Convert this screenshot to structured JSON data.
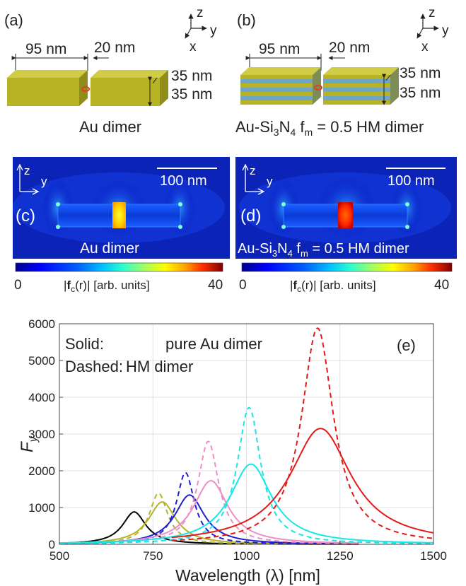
{
  "panels": {
    "a": {
      "label": "(a)",
      "length": "95 nm",
      "gap": "20 nm",
      "height_top": "35 nm",
      "height_bottom": "35 nm",
      "caption": "Au dimer",
      "axes": {
        "z": "z",
        "y": "y",
        "x": "x"
      },
      "block_color": "#b7b324"
    },
    "b": {
      "label": "(b)",
      "length": "95 nm",
      "gap": "20 nm",
      "height_top": "35 nm",
      "height_bottom": "35 nm",
      "caption_prefix": "Au-Si",
      "caption_sub1": "3",
      "caption_mid": "N",
      "caption_sub2": "4",
      "caption_f": " f",
      "caption_fsub": "m",
      "caption_suffix": " = 0.5 HM dimer",
      "axes": {
        "z": "z",
        "y": "y",
        "x": "x"
      },
      "layer_colors": [
        "#b7b324",
        "#6fa6c8"
      ]
    },
    "c": {
      "label": "(c)",
      "scalebar": "100 nm",
      "caption": "Au dimer",
      "axes": {
        "z": "z",
        "y": "y"
      }
    },
    "d": {
      "label": "(d)",
      "scalebar": "100 nm",
      "caption_prefix": "Au-Si",
      "caption_sub1": "3",
      "caption_mid": "N",
      "caption_sub2": "4",
      "caption_f": " f",
      "caption_fsub": "m",
      "caption_suffix": " = 0.5 HM dimer",
      "axes": {
        "z": "z",
        "y": "y"
      }
    },
    "colorbar": {
      "min": "0",
      "max": "40",
      "label_abs": "|",
      "label_f": "f",
      "label_fsub": "c",
      "label_r": "(r)|",
      "label_units": " [arb. units]",
      "colors": [
        "#00008f",
        "#0000ff",
        "#0060ff",
        "#00c0ff",
        "#30ffcf",
        "#a0ff60",
        "#ffff00",
        "#ffa000",
        "#ff3000",
        "#c00000",
        "#800000"
      ]
    }
  },
  "chart_data": {
    "type": "line",
    "panel_label": "(e)",
    "xlabel": "Wavelength (λ) [nm]",
    "ylabel": "F",
    "ylabel_sub": "y",
    "xlim": [
      500,
      1500
    ],
    "ylim": [
      0,
      6000
    ],
    "xticks": [
      500,
      750,
      1000,
      1250,
      1500
    ],
    "yticks": [
      0,
      1000,
      2000,
      3000,
      4000,
      5000,
      6000
    ],
    "grid": true,
    "legend_text": [
      {
        "key": "Solid:",
        "value": "pure Au dimer"
      },
      {
        "key": "Dashed:",
        "value": "HM dimer"
      }
    ],
    "series": [
      {
        "color": "#000000",
        "style": "solid",
        "peak_x": 700,
        "peak_y": 880,
        "width": 38,
        "xmin": 500,
        "xmax": 1300
      },
      {
        "color": "#b5b329",
        "style": "solid",
        "peak_x": 775,
        "peak_y": 1150,
        "width": 45,
        "xmin": 500,
        "xmax": 1300
      },
      {
        "color": "#b5b329",
        "style": "dashed",
        "peak_x": 765,
        "peak_y": 1390,
        "width": 30,
        "xmin": 500,
        "xmax": 1300
      },
      {
        "color": "#1f1fd1",
        "style": "solid",
        "peak_x": 848,
        "peak_y": 1340,
        "width": 48,
        "xmin": 500,
        "xmax": 1300
      },
      {
        "color": "#1f1fd1",
        "style": "dashed",
        "peak_x": 837,
        "peak_y": 1950,
        "width": 29,
        "xmin": 500,
        "xmax": 1300
      },
      {
        "color": "#ec8fc4",
        "style": "solid",
        "peak_x": 905,
        "peak_y": 1730,
        "width": 56,
        "xmin": 500,
        "xmax": 1300
      },
      {
        "color": "#ec8fc4",
        "style": "dashed",
        "peak_x": 898,
        "peak_y": 2800,
        "width": 34,
        "xmin": 500,
        "xmax": 1300
      },
      {
        "color": "#19e6e6",
        "style": "solid",
        "peak_x": 1012,
        "peak_y": 2180,
        "width": 68,
        "xmin": 500,
        "xmax": 1500
      },
      {
        "color": "#19e6e6",
        "style": "dashed",
        "peak_x": 1007,
        "peak_y": 3720,
        "width": 38,
        "xmin": 500,
        "xmax": 1500
      },
      {
        "color": "#e31a1a",
        "style": "solid",
        "peak_x": 1198,
        "peak_y": 3150,
        "width": 100,
        "xmin": 800,
        "xmax": 1500
      },
      {
        "color": "#e31a1a",
        "style": "dashed",
        "peak_x": 1190,
        "peak_y": 5880,
        "width": 52,
        "xmin": 800,
        "xmax": 1500
      }
    ]
  }
}
